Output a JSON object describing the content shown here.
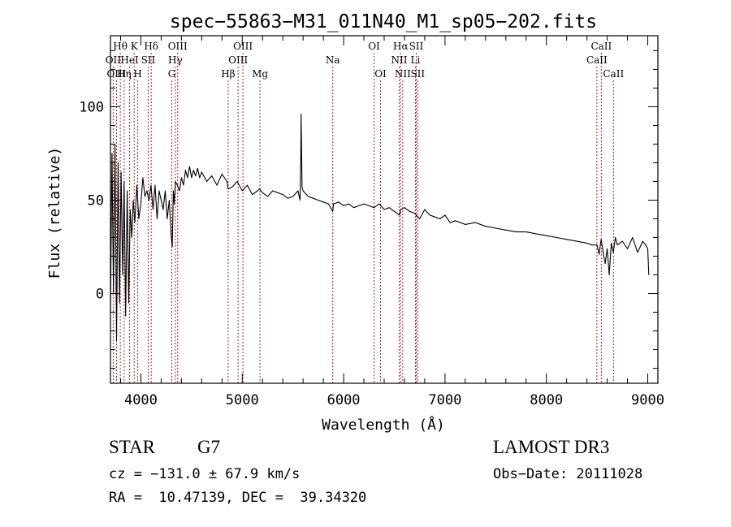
{
  "chart_data": {
    "type": "line",
    "title": "spec−55863−M31_011N40_M1_sp05−202.fits",
    "xlabel": "Wavelength (Å)",
    "ylabel": "Flux (relative)",
    "xlim": [
      3700,
      9100
    ],
    "ylim": [
      -48,
      138
    ],
    "xticks": [
      4000,
      5000,
      6000,
      7000,
      8000,
      9000
    ],
    "xtick_labels": [
      "4000",
      "5000",
      "6000",
      "7000",
      "8000",
      "9000"
    ],
    "yticks": [
      0,
      50,
      100
    ],
    "ytick_labels": [
      "0",
      "50",
      "100"
    ],
    "series": [
      {
        "name": "flux",
        "x": [
          3700,
          3715,
          3730,
          3745,
          3760,
          3775,
          3790,
          3805,
          3820,
          3835,
          3850,
          3865,
          3880,
          3895,
          3910,
          3925,
          3940,
          3960,
          3980,
          4000,
          4020,
          4040,
          4060,
          4080,
          4100,
          4120,
          4140,
          4160,
          4180,
          4200,
          4220,
          4240,
          4260,
          4280,
          4300,
          4310,
          4320,
          4330,
          4340,
          4360,
          4380,
          4400,
          4420,
          4440,
          4460,
          4480,
          4500,
          4520,
          4540,
          4560,
          4580,
          4600,
          4650,
          4700,
          4750,
          4800,
          4850,
          4860,
          4900,
          4950,
          5000,
          5050,
          5100,
          5150,
          5170,
          5200,
          5250,
          5300,
          5350,
          5400,
          5450,
          5500,
          5550,
          5570,
          5577,
          5580,
          5590,
          5600,
          5650,
          5700,
          5750,
          5800,
          5850,
          5893,
          5900,
          5950,
          6000,
          6050,
          6100,
          6150,
          6200,
          6250,
          6300,
          6350,
          6400,
          6450,
          6500,
          6550,
          6563,
          6600,
          6650,
          6700,
          6750,
          6800,
          6850,
          6900,
          6950,
          7000,
          7050,
          7100,
          7200,
          7300,
          7400,
          7500,
          7600,
          7700,
          7800,
          7900,
          8000,
          8100,
          8200,
          8300,
          8400,
          8450,
          8500,
          8520,
          8540,
          8560,
          8580,
          8600,
          8620,
          8640,
          8660,
          8680,
          8700,
          8750,
          8800,
          8850,
          8900,
          8950,
          8980,
          9000,
          9010
        ],
        "values": [
          -10,
          75,
          0,
          80,
          -25,
          70,
          -5,
          65,
          10,
          60,
          -12,
          55,
          -5,
          45,
          30,
          50,
          38,
          58,
          40,
          48,
          62,
          52,
          55,
          50,
          58,
          45,
          58,
          40,
          55,
          50,
          45,
          55,
          40,
          50,
          30,
          25,
          55,
          48,
          60,
          58,
          55,
          62,
          58,
          66,
          62,
          68,
          62,
          66,
          63,
          67,
          62,
          65,
          60,
          63,
          58,
          64,
          60,
          56,
          57,
          60,
          55,
          58,
          53,
          55,
          56,
          54,
          52,
          55,
          54,
          53,
          51,
          52,
          55,
          50,
          70,
          96,
          57,
          55,
          52,
          51,
          50,
          49,
          48,
          44,
          48,
          49,
          47,
          48,
          46,
          47,
          48,
          47,
          46,
          48,
          45,
          46,
          44,
          42,
          45,
          46,
          44,
          43,
          40,
          45,
          42,
          41,
          40,
          42,
          38,
          39,
          37,
          38,
          36,
          35,
          34,
          33,
          33,
          32,
          31,
          30,
          29,
          28,
          27,
          26,
          26,
          21,
          29,
          22,
          16,
          24,
          10,
          27,
          22,
          30,
          26,
          28,
          24,
          30,
          22,
          28,
          26,
          24,
          10
        ]
      }
    ],
    "lines": [
      {
        "label": "Hθ",
        "x": 3797,
        "row": 1
      },
      {
        "label": "OII",
        "x": 3727,
        "row": 2
      },
      {
        "label": "OIII",
        "x": 3760,
        "row": 3
      },
      {
        "label": "Hη",
        "x": 3835,
        "row": 3
      },
      {
        "label": "K",
        "x": 3934,
        "row": 1
      },
      {
        "label": "HeI",
        "x": 3889,
        "row": 2
      },
      {
        "label": "H",
        "x": 3969,
        "row": 3
      },
      {
        "label": "Hδ",
        "x": 4102,
        "row": 1
      },
      {
        "label": "SII",
        "x": 4072,
        "row": 2
      },
      {
        "label": "OIII",
        "x": 4363,
        "row": 1
      },
      {
        "label": "Hγ",
        "x": 4340,
        "row": 2
      },
      {
        "label": "G",
        "x": 4305,
        "row": 3
      },
      {
        "label": "OIII",
        "x": 5007,
        "row": 1
      },
      {
        "label": "OIII",
        "x": 4959,
        "row": 2
      },
      {
        "label": "Hβ",
        "x": 4861,
        "row": 3
      },
      {
        "label": "Mg",
        "x": 5175,
        "row": 3
      },
      {
        "label": "Na",
        "x": 5893,
        "row": 2
      },
      {
        "label": "OI",
        "x": 6300,
        "row": 1
      },
      {
        "label": "OI",
        "x": 6364,
        "row": 3
      },
      {
        "label": "Hα",
        "x": 6563,
        "row": 1
      },
      {
        "label": "NII",
        "x": 6548,
        "row": 2
      },
      {
        "label": "NII",
        "x": 6583,
        "row": 3
      },
      {
        "label": "SII",
        "x": 6716,
        "row": 1
      },
      {
        "label": "Li",
        "x": 6708,
        "row": 2
      },
      {
        "label": "SII",
        "x": 6731,
        "row": 3
      },
      {
        "label": "CaII",
        "x": 8542,
        "row": 1
      },
      {
        "label": "CaII",
        "x": 8498,
        "row": 2
      },
      {
        "label": "CaII",
        "x": 8662,
        "row": 3
      }
    ]
  },
  "info": {
    "object_class": "STAR",
    "subclass": "G7",
    "survey": "LAMOST DR3",
    "redshift": "cz = −131.0 ± 67.9 km/s",
    "obs_date": "Obs−Date: 20111028",
    "coords": "RA =  10.47139, DEC =  39.34320"
  }
}
